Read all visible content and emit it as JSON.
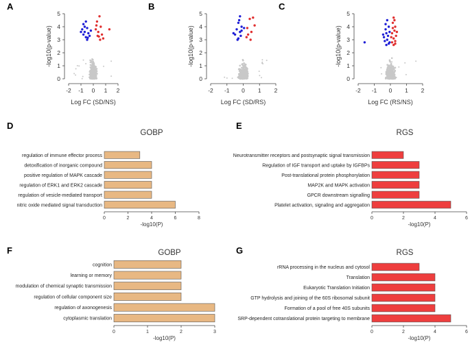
{
  "chart_data": [
    {
      "panel": "A",
      "type": "scatter",
      "subtype": "volcano",
      "xlabel": "Log FC (SD/NS)",
      "ylabel": "-log10(p-value)",
      "xlim": [
        -2,
        2
      ],
      "ylim": [
        0,
        5
      ],
      "xticks": [
        -2,
        -1,
        0,
        1,
        2
      ],
      "yticks": [
        0,
        1,
        2,
        3,
        4,
        5
      ],
      "series": [
        {
          "name": "down",
          "color": "#1f1fd6",
          "points": [
            [
              -0.8,
              4.2
            ],
            [
              -0.6,
              4.4
            ],
            [
              -0.9,
              3.8
            ],
            [
              -0.7,
              3.6
            ],
            [
              -0.5,
              3.9
            ],
            [
              -0.4,
              3.5
            ],
            [
              -0.6,
              3.2
            ],
            [
              -0.8,
              3.4
            ],
            [
              -0.3,
              3.3
            ],
            [
              -0.5,
              3.0
            ],
            [
              -1.0,
              3.6
            ],
            [
              -0.2,
              3.7
            ],
            [
              -0.7,
              4.0
            ],
            [
              -0.45,
              3.15
            ]
          ]
        },
        {
          "name": "up",
          "color": "#e03030",
          "points": [
            [
              0.5,
              4.8
            ],
            [
              0.3,
              4.4
            ],
            [
              0.6,
              4.0
            ],
            [
              0.4,
              3.6
            ],
            [
              0.2,
              3.8
            ],
            [
              0.7,
              3.4
            ],
            [
              1.3,
              3.8
            ],
            [
              0.8,
              3.1
            ],
            [
              0.35,
              3.3
            ],
            [
              0.55,
              3.0
            ],
            [
              0.25,
              4.1
            ],
            [
              0.45,
              3.25
            ]
          ]
        }
      ]
    },
    {
      "panel": "B",
      "type": "scatter",
      "subtype": "volcano",
      "xlabel": "Log FC (SD/RS)",
      "ylabel": "-log10(p-value)",
      "xlim": [
        -2,
        2
      ],
      "ylim": [
        0,
        5
      ],
      "xticks": [
        -2,
        -1,
        0,
        1,
        2
      ],
      "yticks": [
        0,
        1,
        2,
        3,
        4,
        5
      ],
      "series": [
        {
          "name": "down",
          "color": "#1f1fd6",
          "points": [
            [
              -0.2,
              4.8
            ],
            [
              -0.3,
              4.3
            ],
            [
              -0.1,
              4.0
            ],
            [
              -0.4,
              3.8
            ],
            [
              -0.2,
              3.6
            ],
            [
              -0.5,
              3.4
            ],
            [
              -0.15,
              3.3
            ],
            [
              -0.6,
              3.5
            ],
            [
              -0.3,
              3.1
            ],
            [
              -0.1,
              3.7
            ],
            [
              -0.25,
              4.5
            ],
            [
              -0.35,
              3.0
            ],
            [
              0.05,
              3.9
            ]
          ]
        },
        {
          "name": "up",
          "color": "#e03030",
          "points": [
            [
              0.4,
              4.6
            ],
            [
              0.6,
              4.7
            ],
            [
              0.7,
              4.1
            ],
            [
              0.3,
              3.4
            ],
            [
              0.5,
              3.6
            ],
            [
              0.2,
              3.2
            ],
            [
              0.45,
              3.0
            ],
            [
              0.25,
              3.9
            ]
          ]
        }
      ]
    },
    {
      "panel": "C",
      "type": "scatter",
      "subtype": "volcano",
      "xlabel": "Log FC (RS/NS)",
      "ylabel": "-log10(p-value)",
      "xlim": [
        -2,
        2
      ],
      "ylim": [
        0,
        5
      ],
      "xticks": [
        -2,
        -1,
        0,
        1,
        2
      ],
      "yticks": [
        0,
        1,
        2,
        3,
        4,
        5
      ],
      "series": [
        {
          "name": "down",
          "color": "#1f1fd6",
          "points": [
            [
              -0.2,
              4.5
            ],
            [
              -0.1,
              4.0
            ],
            [
              -0.3,
              3.8
            ],
            [
              -0.25,
              3.5
            ],
            [
              -0.15,
              3.3
            ],
            [
              -0.4,
              3.2
            ],
            [
              -0.05,
              3.6
            ],
            [
              -0.2,
              3.0
            ],
            [
              -0.35,
              2.9
            ],
            [
              -0.1,
              2.7
            ],
            [
              -0.3,
              4.2
            ],
            [
              -1.6,
              2.8
            ],
            [
              -0.45,
              3.4
            ],
            [
              -0.05,
              2.8
            ],
            [
              -0.25,
              2.6
            ]
          ]
        },
        {
          "name": "up",
          "color": "#e03030",
          "points": [
            [
              0.2,
              4.7
            ],
            [
              0.15,
              4.3
            ],
            [
              0.3,
              4.0
            ],
            [
              0.25,
              3.7
            ],
            [
              0.1,
              3.5
            ],
            [
              0.35,
              3.3
            ],
            [
              0.2,
              3.1
            ],
            [
              0.3,
              2.9
            ],
            [
              0.1,
              2.8
            ],
            [
              0.25,
              4.5
            ],
            [
              0.15,
              3.9
            ],
            [
              0.4,
              3.6
            ],
            [
              0.05,
              3.2
            ],
            [
              0.3,
              2.7
            ],
            [
              0.2,
              2.6
            ]
          ]
        }
      ]
    },
    {
      "panel": "D",
      "type": "bar",
      "orientation": "horizontal",
      "title": "GOBP",
      "xlabel": "-log10(P)",
      "xlim": [
        0,
        8
      ],
      "xticks": [
        0,
        2,
        4,
        6,
        8
      ],
      "bar_color": "#e8b883",
      "categories": [
        "regulation of immune effector process",
        "detoxification of inorganic compound",
        "positive regulation of MAPK cascade",
        "regulation of ERK1 and ERK2 cascade",
        "regulation of vesicle-mediated transport",
        "nitric oxide mediated signal transduction"
      ],
      "values": [
        3,
        4,
        4,
        4,
        4,
        6
      ]
    },
    {
      "panel": "E",
      "type": "bar",
      "orientation": "horizontal",
      "title": "RGS",
      "xlabel": "-log10(P)",
      "xlim": [
        0,
        6
      ],
      "xticks": [
        0,
        2,
        4,
        6
      ],
      "bar_color": "#ee3e3e",
      "categories": [
        "Neurotransmitter receptors and postsynaptic signal transmission",
        "Regulation of IGF transport and uptake by IGFBPs",
        "Post-translational protein phosphorylation",
        "MAP2K and MAPK activation",
        "GPCR downstream signalling",
        "Platelet activation, signaling and aggregation"
      ],
      "values": [
        2,
        3,
        3,
        3,
        3,
        5
      ]
    },
    {
      "panel": "F",
      "type": "bar",
      "orientation": "horizontal",
      "title": "GOBP",
      "xlabel": "-log10(P)",
      "xlim": [
        0,
        3
      ],
      "xticks": [
        0,
        1,
        2,
        3
      ],
      "bar_color": "#e8b883",
      "categories": [
        "cognition",
        "learning or memory",
        "modulation of chemical synaptic transmission",
        "regulation of cellular component size",
        "regulation of axonogenesis",
        "cytoplasmic translation"
      ],
      "values": [
        2,
        2,
        2,
        2,
        3,
        3
      ]
    },
    {
      "panel": "G",
      "type": "bar",
      "orientation": "horizontal",
      "title": "RGS",
      "xlabel": "-log10(P)",
      "xlim": [
        0,
        6
      ],
      "xticks": [
        0,
        2,
        4,
        6
      ],
      "bar_color": "#ee3e3e",
      "categories": [
        "rRNA processing in the nucleus and cytosol",
        "Translation",
        "Eukaryotic Translation Initiation",
        "GTP hydrolysis and joining of the 60S ribosomal subunit",
        "Formation of a pool of free 40S subunits",
        "SRP-dependent cotranslational protein targeting to membrane"
      ],
      "values": [
        3,
        4,
        4,
        4,
        4,
        5
      ]
    }
  ]
}
